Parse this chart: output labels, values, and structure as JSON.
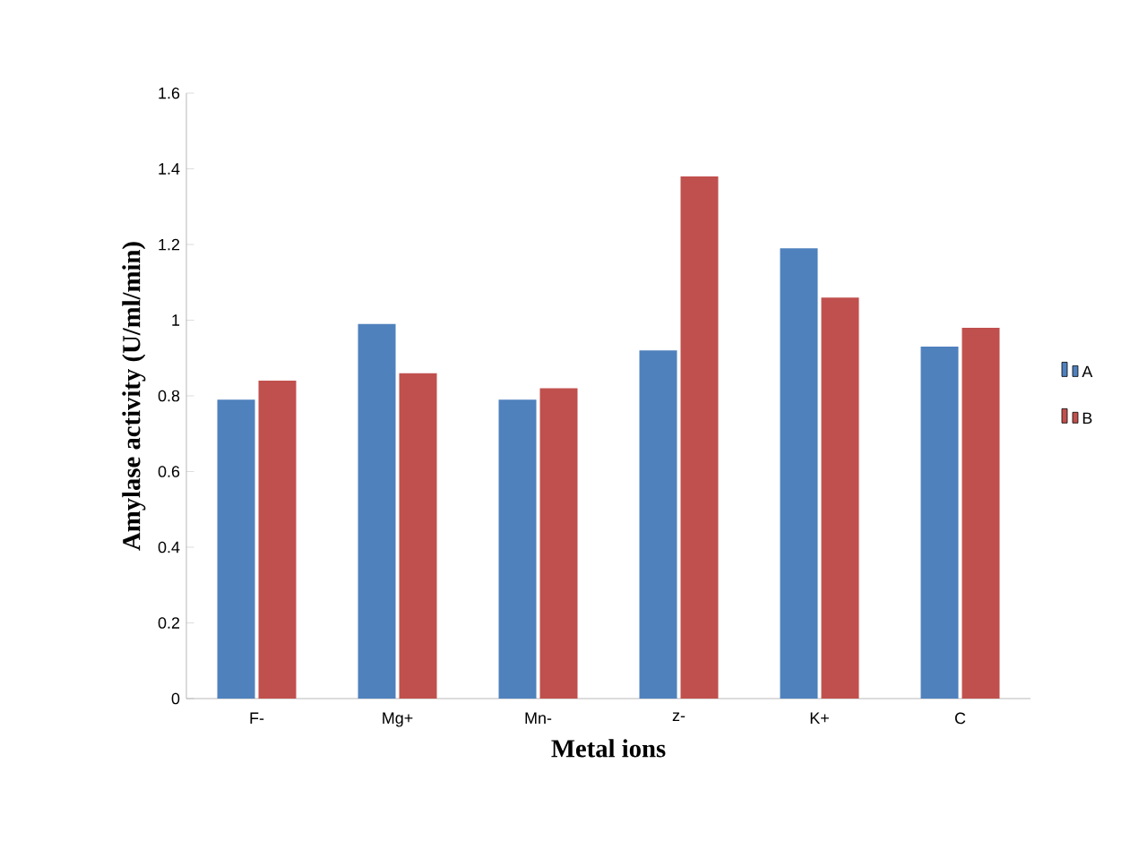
{
  "chart_data": {
    "type": "bar",
    "xlabel": "Metal ions",
    "ylabel": "Amylase activity (U/ml/min)",
    "categories": [
      "F-",
      "Mg+",
      "Mn-",
      "z-",
      "K+",
      "C"
    ],
    "series": [
      {
        "name": "A",
        "color": "#4f81bd",
        "values": [
          0.79,
          0.99,
          0.79,
          0.92,
          1.19,
          0.93
        ]
      },
      {
        "name": "B",
        "color": "#c0504d",
        "values": [
          0.84,
          0.86,
          0.82,
          1.38,
          1.06,
          0.98
        ]
      }
    ],
    "ylim": [
      0,
      1.6
    ],
    "yticks": [
      0,
      0.2,
      0.4,
      0.6,
      0.8,
      1,
      1.2,
      1.4,
      1.6
    ],
    "grid": false,
    "legend": "right"
  }
}
